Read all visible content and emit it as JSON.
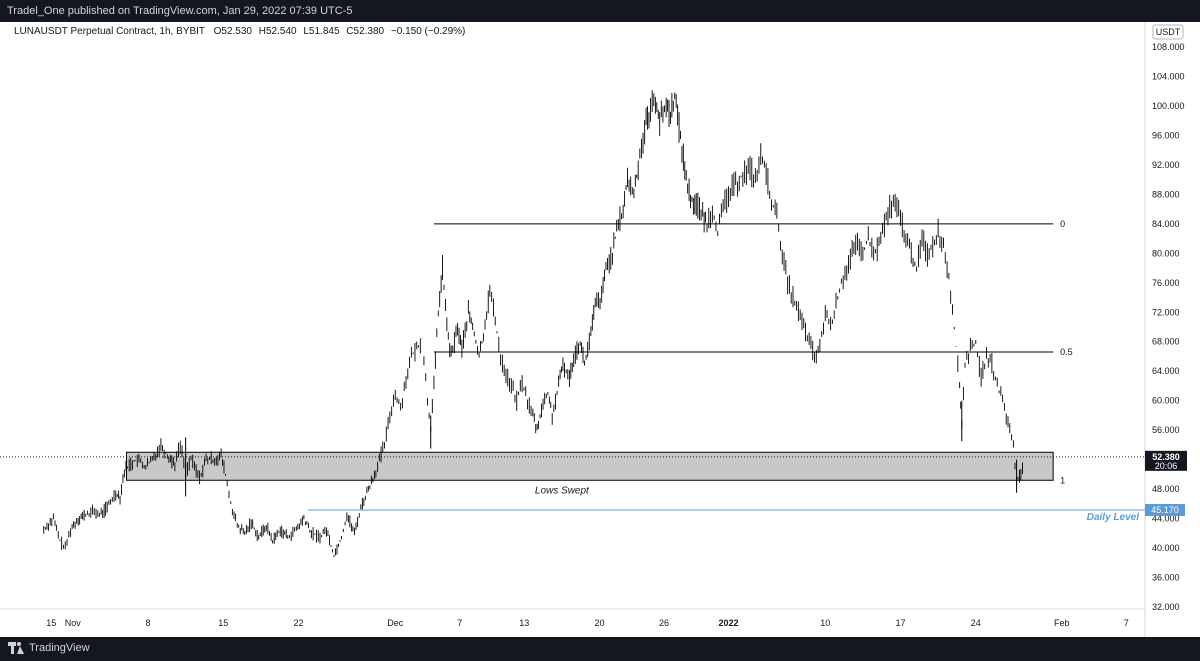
{
  "publish_info": "Tradel_One published on TradingView.com, Jan 29, 2022 07:39 UTC-5",
  "brand": "TradingView",
  "legend": {
    "symbol": "LUNAUSDT Perpetual Contract, 1h, BYBIT",
    "open": "O52.530",
    "high": "H52.540",
    "low": "L51.845",
    "close": "C52.380",
    "change": "−0.150 (−0.29%)"
  },
  "currency_button": "USDT",
  "price_badge": {
    "price": "52.380",
    "countdown": "20:06"
  },
  "daily_level_badge": "45.170",
  "chart_data": {
    "type": "candlestick",
    "symbol": "LUNAUSDT",
    "timeframe": "1h",
    "exchange": "BYBIT",
    "ylim": [
      31,
      110
    ],
    "y_ticks": [
      "108.000",
      "104.000",
      "100.000",
      "96.000",
      "92.000",
      "88.000",
      "84.000",
      "80.000",
      "76.000",
      "72.000",
      "68.000",
      "64.000",
      "60.000",
      "56.000",
      "52.000",
      "48.000",
      "44.000",
      "40.000",
      "36.000",
      "32.000"
    ],
    "x_ticks": [
      {
        "label": "15",
        "d": -17
      },
      {
        "label": "Nov",
        "d": -15
      },
      {
        "label": "8",
        "d": -8
      },
      {
        "label": "15",
        "d": -1
      },
      {
        "label": "22",
        "d": 6
      },
      {
        "label": "Dec",
        "d": 15
      },
      {
        "label": "7",
        "d": 21
      },
      {
        "label": "13",
        "d": 27
      },
      {
        "label": "20",
        "d": 34
      },
      {
        "label": "26",
        "d": 40
      },
      {
        "label": "2022",
        "d": 46
      },
      {
        "label": "10",
        "d": 55
      },
      {
        "label": "17",
        "d": 62
      },
      {
        "label": "24",
        "d": 69
      },
      {
        "label": "Feb",
        "d": 77
      },
      {
        "label": "7",
        "d": 83
      }
    ],
    "price_path": [
      [
        -17.7,
        42.5
      ],
      [
        -16.8,
        44
      ],
      [
        -16.2,
        41
      ],
      [
        -15.7,
        40
      ],
      [
        -15.2,
        42.5
      ],
      [
        -14.5,
        44
      ],
      [
        -13.8,
        44.5
      ],
      [
        -13,
        45
      ],
      [
        -12.5,
        44.5
      ],
      [
        -11.8,
        45.5
      ],
      [
        -11,
        47.5
      ],
      [
        -10.6,
        47
      ],
      [
        -10.2,
        50.5
      ],
      [
        -9.6,
        51.5
      ],
      [
        -9,
        52
      ],
      [
        -8.2,
        51
      ],
      [
        -7.6,
        52
      ],
      [
        -6.8,
        54
      ],
      [
        -6.2,
        52.5
      ],
      [
        -5.5,
        51.5
      ],
      [
        -5,
        54
      ],
      [
        -4.5,
        50.5
      ],
      [
        -4,
        52
      ],
      [
        -3.2,
        49.5
      ],
      [
        -2.6,
        52
      ],
      [
        -1.8,
        52
      ],
      [
        -1.2,
        52.5
      ],
      [
        -0.8,
        50
      ],
      [
        -0.3,
        46
      ],
      [
        0.3,
        43
      ],
      [
        1,
        42
      ],
      [
        1.6,
        43.5
      ],
      [
        2.3,
        41.5
      ],
      [
        3,
        43
      ],
      [
        3.6,
        41
      ],
      [
        4.3,
        42.5
      ],
      [
        5,
        41.5
      ],
      [
        5.8,
        42.5
      ],
      [
        6.5,
        44
      ],
      [
        7.2,
        42
      ],
      [
        8,
        41.5
      ],
      [
        8.6,
        42.5
      ],
      [
        9.3,
        39
      ],
      [
        10,
        41.5
      ],
      [
        10.5,
        44.5
      ],
      [
        11.2,
        42
      ],
      [
        11.8,
        45.5
      ],
      [
        12.5,
        48
      ],
      [
        13.2,
        50.5
      ],
      [
        14,
        54
      ],
      [
        14.5,
        58
      ],
      [
        15,
        61
      ],
      [
        15.5,
        59
      ],
      [
        16,
        63
      ],
      [
        16.5,
        66
      ],
      [
        17,
        67
      ],
      [
        17.5,
        68.5
      ],
      [
        18,
        60
      ],
      [
        18.3,
        56.5
      ],
      [
        18.6,
        62
      ],
      [
        19,
        72
      ],
      [
        19.4,
        78
      ],
      [
        19.8,
        70
      ],
      [
        20.2,
        66
      ],
      [
        20.8,
        70
      ],
      [
        21.2,
        67
      ],
      [
        21.8,
        72
      ],
      [
        22.2,
        70
      ],
      [
        22.8,
        66
      ],
      [
        23.2,
        69
      ],
      [
        23.8,
        75
      ],
      [
        24.3,
        71
      ],
      [
        24.8,
        66
      ],
      [
        25.3,
        63.5
      ],
      [
        25.8,
        62
      ],
      [
        26.3,
        60
      ],
      [
        26.8,
        62.5
      ],
      [
        27.3,
        60
      ],
      [
        27.8,
        58
      ],
      [
        28.2,
        56
      ],
      [
        28.6,
        59
      ],
      [
        29.2,
        61
      ],
      [
        29.6,
        58
      ],
      [
        30.2,
        62
      ],
      [
        30.6,
        65
      ],
      [
        31.2,
        63
      ],
      [
        31.6,
        66
      ],
      [
        32.2,
        68
      ],
      [
        32.6,
        65
      ],
      [
        33.2,
        69
      ],
      [
        33.6,
        73
      ],
      [
        34.2,
        74
      ],
      [
        34.6,
        78
      ],
      [
        35.2,
        80
      ],
      [
        35.6,
        83
      ],
      [
        36.2,
        86
      ],
      [
        36.6,
        90
      ],
      [
        37.2,
        88
      ],
      [
        37.6,
        92
      ],
      [
        38.2,
        97
      ],
      [
        38.6,
        99
      ],
      [
        39.2,
        101
      ],
      [
        39.6,
        98
      ],
      [
        40.2,
        100
      ],
      [
        40.6,
        99
      ],
      [
        41,
        101.5
      ],
      [
        41.4,
        97
      ],
      [
        41.8,
        93
      ],
      [
        42.2,
        89
      ],
      [
        42.6,
        87
      ],
      [
        43,
        87
      ],
      [
        43.6,
        85
      ],
      [
        44,
        84
      ],
      [
        44.5,
        86
      ],
      [
        45,
        83
      ],
      [
        45.5,
        86
      ],
      [
        46,
        88
      ],
      [
        46.5,
        89
      ],
      [
        47,
        90
      ],
      [
        47.5,
        91
      ],
      [
        48,
        91.5
      ],
      [
        48.5,
        90
      ],
      [
        49,
        93
      ],
      [
        49.5,
        91
      ],
      [
        50,
        87
      ],
      [
        50.5,
        85
      ],
      [
        51,
        80
      ],
      [
        51.5,
        76
      ],
      [
        52,
        74
      ],
      [
        52.5,
        72
      ],
      [
        53,
        70
      ],
      [
        53.5,
        68
      ],
      [
        54,
        66
      ],
      [
        54.5,
        67
      ],
      [
        55,
        72
      ],
      [
        55.5,
        70
      ],
      [
        56,
        73
      ],
      [
        56.5,
        76
      ],
      [
        57,
        78
      ],
      [
        57.5,
        80
      ],
      [
        58,
        81
      ],
      [
        58.5,
        80
      ],
      [
        59,
        82
      ],
      [
        59.5,
        80
      ],
      [
        60,
        81
      ],
      [
        60.5,
        84
      ],
      [
        61,
        86
      ],
      [
        61.5,
        86.5
      ],
      [
        62,
        85
      ],
      [
        62.5,
        82
      ],
      [
        63,
        80
      ],
      [
        63.5,
        78
      ],
      [
        64,
        82
      ],
      [
        64.5,
        80
      ],
      [
        65,
        81
      ],
      [
        65.5,
        83
      ],
      [
        66,
        81
      ],
      [
        66.5,
        77
      ],
      [
        67,
        70
      ],
      [
        67.5,
        62
      ],
      [
        67.7,
        57
      ],
      [
        68,
        65
      ],
      [
        68.5,
        67
      ],
      [
        69,
        68
      ],
      [
        69.5,
        63
      ],
      [
        70,
        66
      ],
      [
        70.5,
        65
      ],
      [
        71,
        62
      ],
      [
        71.5,
        60
      ],
      [
        72,
        57
      ],
      [
        72.5,
        54
      ],
      [
        72.8,
        49
      ],
      [
        73.2,
        50
      ],
      [
        73.5,
        52.4
      ]
    ],
    "series": [
      {
        "name": "0",
        "value": 84.0,
        "kind": "fib-level"
      },
      {
        "name": "0.5",
        "value": 66.6,
        "kind": "fib-level"
      },
      {
        "name": "1",
        "value": 49.2,
        "kind": "fib-level"
      }
    ],
    "zone": {
      "label": "Lows Swept",
      "from": 49.2,
      "to": 53.0
    },
    "daily_level": {
      "label": "Daily Level",
      "value": 45.17
    },
    "last_price": 52.38,
    "colors": {
      "candles": "#000000",
      "zone_fill": "#c8c8c8",
      "daily_level": "#5b9bd5",
      "fib_line": "#000000",
      "badge_bg": "#131722",
      "daily_badge_bg": "#5b9bd5"
    }
  }
}
